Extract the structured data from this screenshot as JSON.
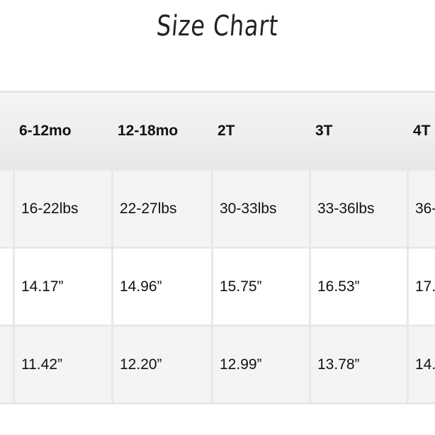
{
  "title": "Size Chart",
  "table": {
    "headers": [
      "6-12mo",
      "12-18mo",
      "2T",
      "3T",
      "4T"
    ],
    "rows": [
      [
        "16-22lbs",
        "22-27lbs",
        "30-33lbs",
        "33-36lbs",
        "36-"
      ],
      [
        "14.17”",
        "14.96”",
        "15.75”",
        "16.53”",
        "17."
      ],
      [
        "11.42”",
        "12.20”",
        "12.99”",
        "13.78”",
        "14."
      ]
    ]
  }
}
